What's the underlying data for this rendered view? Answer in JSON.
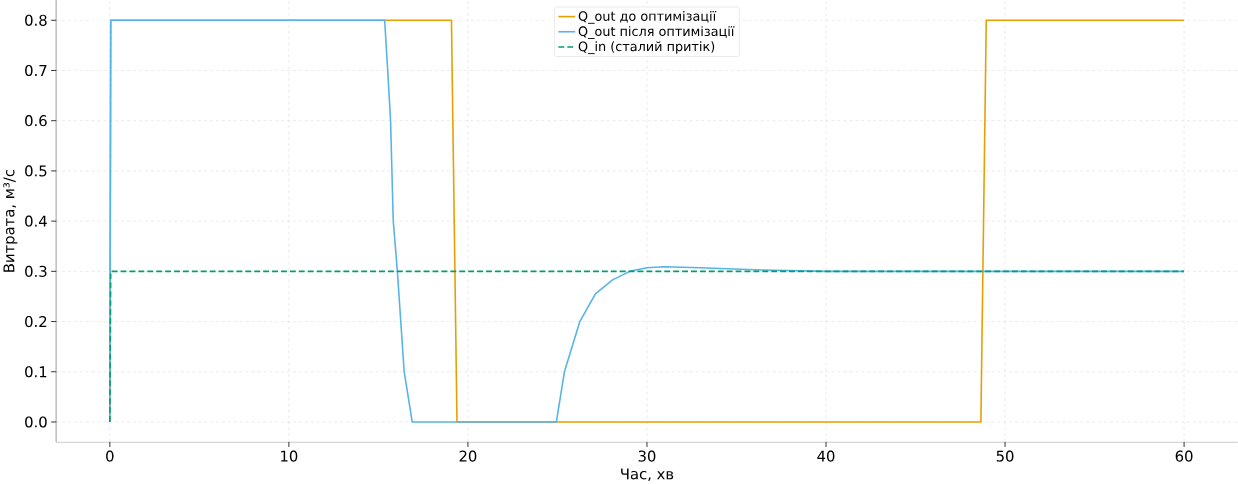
{
  "chart_data": {
    "type": "line",
    "xlabel": "Час, хв",
    "ylabel": "Витрата, м³/с",
    "xlim": [
      -3,
      63
    ],
    "ylim": [
      -0.04,
      0.84
    ],
    "xticks": [
      0,
      10,
      20,
      30,
      40,
      50,
      60
    ],
    "yticks": [
      {
        "value": 0,
        "label": "0.0"
      },
      {
        "value": 0.1,
        "label": "0.1"
      },
      {
        "value": 0.2,
        "label": "0.2"
      },
      {
        "value": 0.3,
        "label": "0.3"
      },
      {
        "value": 0.4,
        "label": "0.4"
      },
      {
        "value": 0.5,
        "label": "0.5"
      },
      {
        "value": 0.6,
        "label": "0.6"
      },
      {
        "value": 0.7,
        "label": "0.7"
      },
      {
        "value": 0.8,
        "label": "0.8"
      }
    ],
    "grid": true,
    "legend": "top",
    "marker": "none",
    "series": [
      {
        "name": "Q_out до оптимізації",
        "color": "#e69f00",
        "line_style": "solid",
        "x": [
          0,
          0.05,
          19.08,
          19.39,
          48.65,
          48.95,
          60
        ],
        "values": [
          0,
          0.8,
          0.8,
          0,
          0,
          0.8,
          0.8
        ]
      },
      {
        "name": "Q_out після оптимізації",
        "color": "#56b4e9",
        "line_style": "solid",
        "x": [
          0,
          0.05,
          15.35,
          15.52,
          15.68,
          15.83,
          16.06,
          16.44,
          16.89,
          24.94,
          25.39,
          26.25,
          27.12,
          28.08,
          29.04,
          30.0,
          30.96,
          33,
          36,
          40,
          45,
          60
        ],
        "values": [
          0,
          0.8,
          0.8,
          0.7,
          0.6,
          0.4,
          0.3,
          0.1,
          0,
          0,
          0.1,
          0.2,
          0.255,
          0.283,
          0.3,
          0.307,
          0.309,
          0.307,
          0.303,
          0.3,
          0.3,
          0.3
        ]
      },
      {
        "name": "Q_in (сталий притік)",
        "color": "#009e73",
        "line_style": "dashed",
        "x": [
          0,
          0.05,
          60
        ],
        "values": [
          0,
          0.3,
          0.3
        ]
      }
    ]
  }
}
